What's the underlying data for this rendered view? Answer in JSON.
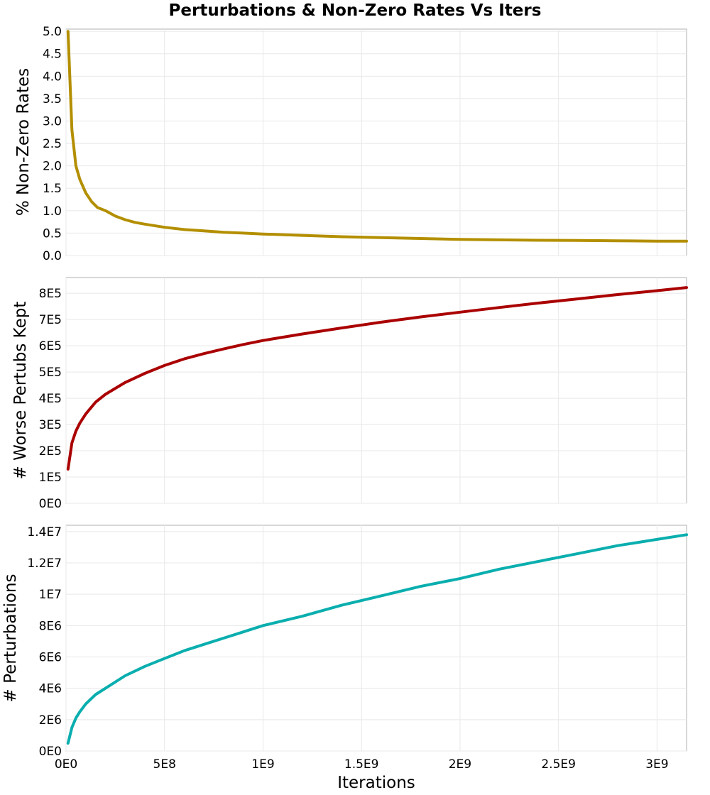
{
  "title": "Perturbations & Non-Zero Rates Vs Iters",
  "chart_data": {
    "type": "line",
    "title": "Perturbations & Non-Zero Rates Vs Iters",
    "xlabel": "Iterations",
    "xlim": [
      0,
      3150000000
    ],
    "x_tick_values": [
      0,
      500000000,
      1000000000,
      1500000000,
      2000000000,
      2500000000,
      3000000000
    ],
    "x_tick_labels": [
      "0E0",
      "5E8",
      "1E9",
      "1.5E9",
      "2E9",
      "2.5E9",
      "3E9"
    ],
    "grid": true,
    "legend": "none",
    "panels": [
      {
        "ylabel": "% Non-Zero Rates",
        "ylim": [
          0,
          5.05
        ],
        "y_tick_values": [
          0,
          0.5,
          1,
          1.5,
          2,
          2.5,
          3,
          3.5,
          4,
          4.5,
          5
        ],
        "y_tick_labels": [
          "0.0",
          "0.5",
          "1.0",
          "1.5",
          "2.0",
          "2.5",
          "3.0",
          "3.5",
          "4.0",
          "4.5",
          "5.0"
        ],
        "color": "#b38f00",
        "series": [
          {
            "x": [
              10000000,
              30000000,
              50000000,
              70000000,
              100000000,
              130000000,
              160000000,
              200000000,
              250000000,
              300000000,
              350000000,
              400000000,
              500000000,
              600000000,
              700000000,
              800000000,
              900000000,
              1000000000,
              1200000000,
              1400000000,
              1600000000,
              1800000000,
              2000000000,
              2200000000,
              2400000000,
              2600000000,
              2800000000,
              3000000000,
              3150000000
            ],
            "y": [
              5.0,
              2.8,
              2.0,
              1.7,
              1.4,
              1.2,
              1.07,
              1.0,
              0.88,
              0.8,
              0.74,
              0.7,
              0.63,
              0.58,
              0.55,
              0.52,
              0.5,
              0.48,
              0.45,
              0.42,
              0.4,
              0.38,
              0.36,
              0.35,
              0.34,
              0.335,
              0.33,
              0.32,
              0.32
            ]
          }
        ]
      },
      {
        "ylabel": "# Worse Pertubs Kept",
        "ylim": [
          0,
          860000
        ],
        "y_tick_values": [
          0,
          100000,
          200000,
          300000,
          400000,
          500000,
          600000,
          700000,
          800000
        ],
        "y_tick_labels": [
          "0E0",
          "1E5",
          "2E5",
          "3E5",
          "4E5",
          "5E5",
          "6E5",
          "7E5",
          "8E5"
        ],
        "color": "#aa0000",
        "series": [
          {
            "x": [
              10000000,
              30000000,
              50000000,
              70000000,
              100000000,
              150000000,
              200000000,
              300000000,
              400000000,
              500000000,
              600000000,
              700000000,
              800000000,
              900000000,
              1000000000,
              1200000000,
              1400000000,
              1600000000,
              1800000000,
              2000000000,
              2200000000,
              2400000000,
              2600000000,
              2800000000,
              3000000000,
              3150000000
            ],
            "y": [
              130000,
              230000,
              275000,
              305000,
              340000,
              385000,
              415000,
              460000,
              495000,
              525000,
              550000,
              570000,
              588000,
              605000,
              620000,
              645000,
              668000,
              690000,
              710000,
              728000,
              746000,
              763000,
              779000,
              795000,
              810000,
              822000
            ]
          }
        ]
      },
      {
        "ylabel": "# Perturbations",
        "ylim": [
          0,
          14400000
        ],
        "y_tick_values": [
          0,
          2000000,
          4000000,
          6000000,
          8000000,
          10000000,
          12000000,
          14000000
        ],
        "y_tick_labels": [
          "0E0",
          "2E6",
          "4E6",
          "6E6",
          "8E6",
          "1E7",
          "1.2E7",
          "1.4E7"
        ],
        "color": "#0aaeae",
        "series": [
          {
            "x": [
              10000000,
              30000000,
              50000000,
              70000000,
              100000000,
              150000000,
              200000000,
              300000000,
              400000000,
              500000000,
              600000000,
              700000000,
              800000000,
              900000000,
              1000000000,
              1200000000,
              1400000000,
              1600000000,
              1800000000,
              2000000000,
              2200000000,
              2400000000,
              2600000000,
              2800000000,
              3000000000,
              3150000000
            ],
            "y": [
              500000,
              1500000,
              2100000,
              2500000,
              3000000,
              3600000,
              4000000,
              4800000,
              5400000,
              5900000,
              6400000,
              6800000,
              7200000,
              7600000,
              8000000,
              8600000,
              9300000,
              9900000,
              10500000,
              11000000,
              11600000,
              12100000,
              12600000,
              13100000,
              13500000,
              13800000
            ]
          }
        ]
      }
    ]
  }
}
